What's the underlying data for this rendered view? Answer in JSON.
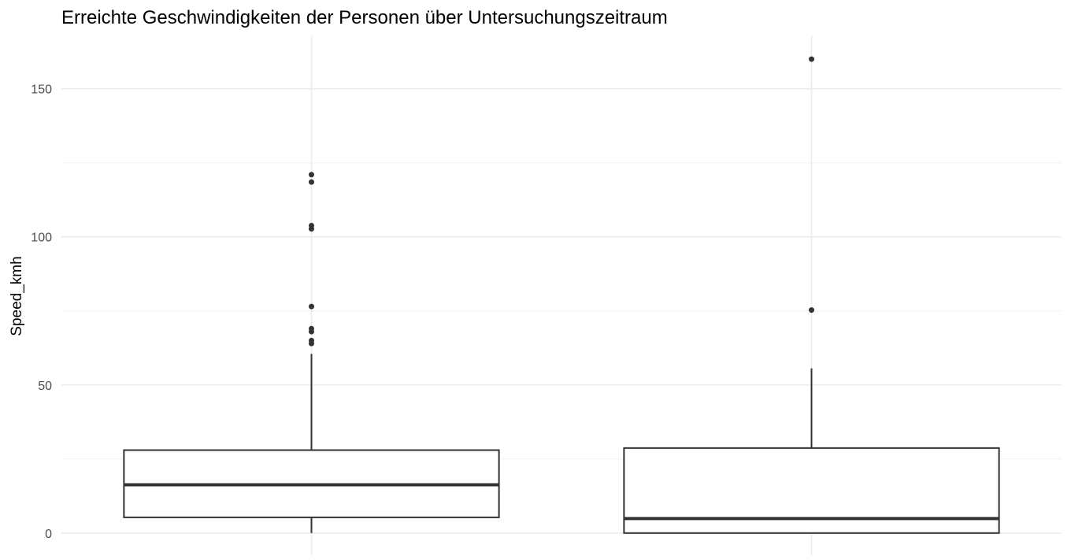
{
  "chart_data": {
    "type": "boxplot",
    "title": "Erreichte Geschwindigkeiten der Personen über Untersuchungszeitraum",
    "xlabel": "",
    "ylabel": "Speed_kmh",
    "ylim": [
      -7.5,
      168
    ],
    "y_ticks": [
      0,
      50,
      100,
      150
    ],
    "grid": true,
    "boxes": [
      {
        "whisker_low": 0,
        "q1": 5.3,
        "median": 16.3,
        "q3": 28,
        "whisker_high": 60.5,
        "outliers": [
          64,
          65,
          68,
          69,
          76.5,
          102.7,
          103.8,
          118.5,
          121
        ]
      },
      {
        "whisker_low": 0,
        "q1": 0,
        "median": 4.9,
        "q3": 28.7,
        "whisker_high": 55.6,
        "outliers": [
          75.3,
          160
        ]
      }
    ]
  }
}
